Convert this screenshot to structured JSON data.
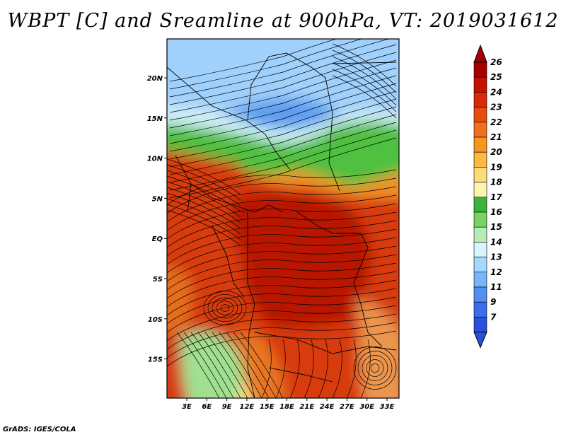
{
  "title": "WBPT [C] and Sreamline at 900hPa, VT: 2019031612",
  "footer": "GrADS: IGES/COLA",
  "map": {
    "lat_labels": [
      "20N",
      "15N",
      "10N",
      "5N",
      "EQ",
      "5S",
      "10S",
      "15S"
    ],
    "lon_labels": [
      "3E",
      "6E",
      "9E",
      "12E",
      "15E",
      "18E",
      "21E",
      "24E",
      "27E",
      "30E",
      "33E"
    ]
  },
  "colorbar": {
    "levels": [
      "26",
      "25",
      "24",
      "23",
      "22",
      "21",
      "20",
      "19",
      "18",
      "17",
      "16",
      "15",
      "14",
      "13",
      "12",
      "11",
      "9",
      "7"
    ],
    "colors": [
      "#a50000",
      "#c81000",
      "#d82a08",
      "#e84c10",
      "#f0701c",
      "#f89420",
      "#fcb840",
      "#fcdc78",
      "#fcf4b0",
      "#3cb43c",
      "#78d264",
      "#b4ecb4",
      "#d8f4fc",
      "#a4d8fc",
      "#78b4f8",
      "#5090f0",
      "#3c6ce8",
      "#2850dc"
    ]
  },
  "field_colors": {
    "hot": "#b81400",
    "warm": "#d83a10",
    "orange": "#f09028",
    "yellow": "#fce080",
    "green": "#50c040",
    "lightgreen": "#a0e090",
    "cyan": "#d0f0f8",
    "lightblue": "#a0d0fc",
    "blue": "#5c9cf0"
  }
}
